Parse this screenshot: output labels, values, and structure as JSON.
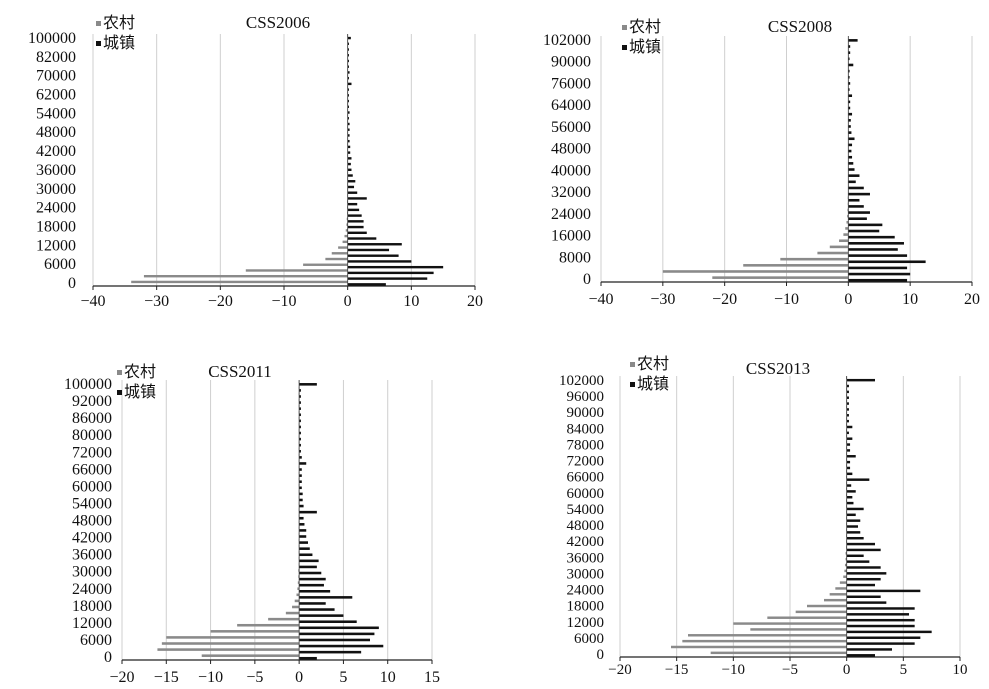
{
  "chart_data": [
    {
      "type": "bar",
      "title": "CSS2006",
      "xlabel": "",
      "ylabel": "",
      "xlim": [
        -40,
        20
      ],
      "x_ticks": [
        "−40",
        "−30",
        "−20",
        "−10",
        "0",
        "10",
        "20"
      ],
      "y_tick_labels": [
        "0",
        "6000",
        "12000",
        "18000",
        "24000",
        "30000",
        "36000",
        "42000",
        "48000",
        "54000",
        "62000",
        "70000",
        "82000",
        "100000"
      ],
      "legend": {
        "position": "top-left"
      },
      "series": [
        {
          "name": "农村",
          "color": "#8a8a8a",
          "values": [
            -34,
            -32,
            -16,
            -7,
            -3.5,
            -2.5,
            -1.5,
            -0.8,
            -0.5,
            -0.3,
            -0.2,
            -0.15,
            -0.1,
            -0.1,
            -0.1,
            -0.05,
            -0.05,
            -0.05,
            -0.05,
            -0.05,
            -0.05,
            -0.05,
            -0.05,
            -0.05,
            -0.05,
            -0.05,
            -0.05,
            -0.05,
            -0.05,
            -0.05,
            -0.05,
            -0.05,
            -0.05,
            -0.05,
            -0.05,
            -0.05,
            -0.05,
            -0.05,
            -0.05,
            -0.05,
            -0.05,
            -0.05,
            -0.05,
            -0.05
          ]
        },
        {
          "name": "城镇",
          "color": "#111111",
          "values": [
            6,
            12.5,
            13.5,
            15,
            10,
            8,
            6.5,
            8.5,
            4.5,
            3,
            2.5,
            2.5,
            2.2,
            1.8,
            1.5,
            3,
            1.5,
            1.0,
            1.2,
            0.8,
            0.6,
            0.5,
            0.6,
            0.4,
            0.4,
            0.3,
            0.3,
            0.3,
            0.3,
            0.2,
            0.3,
            0.2,
            0.2,
            0.2,
            0.2,
            0.6,
            0.2,
            0.3,
            0.2,
            0.2,
            0.2,
            0.2,
            0.2,
            0.5
          ]
        }
      ]
    },
    {
      "type": "bar",
      "title": "CSS2008",
      "xlabel": "",
      "ylabel": "",
      "xlim": [
        -40,
        20
      ],
      "x_ticks": [
        "−40",
        "−30",
        "−20",
        "−10",
        "0",
        "10",
        "20"
      ],
      "y_tick_labels": [
        "0",
        "8000",
        "16000",
        "24000",
        "32000",
        "40000",
        "48000",
        "56000",
        "64000",
        "76000",
        "90000",
        "102000"
      ],
      "legend": {
        "position": "top-left"
      },
      "series": [
        {
          "name": "农村",
          "color": "#8a8a8a",
          "values": [
            -22,
            -30,
            -17,
            -11,
            -5,
            -3,
            -1.5,
            -0.8,
            -0.5,
            -0.3,
            -0.2,
            -0.15,
            -0.1,
            -0.1,
            -0.05,
            -0.05,
            -0.05,
            -0.05,
            -0.05,
            -0.05,
            -0.05,
            -0.05,
            -0.05,
            -0.05,
            -0.05,
            -0.05,
            -0.05,
            -0.05,
            -0.05,
            -0.05,
            -0.05,
            -0.05,
            -0.05,
            -0.05,
            -0.05,
            -0.05,
            -0.05,
            -0.05,
            -0.05,
            -0.05
          ]
        },
        {
          "name": "城镇",
          "color": "#111111",
          "values": [
            9.5,
            10,
            9.5,
            12.5,
            9.5,
            8,
            9,
            7.5,
            5,
            5.5,
            3,
            3.5,
            2.5,
            1.8,
            3.5,
            2.5,
            1.2,
            1.8,
            1.0,
            0.8,
            0.6,
            0.5,
            0.6,
            1.0,
            0.5,
            0.4,
            0.4,
            0.6,
            0.3,
            0.3,
            0.6,
            0.2,
            0.3,
            0.2,
            0.2,
            0.8,
            0.2,
            0.3,
            0.3,
            1.5
          ]
        }
      ]
    },
    {
      "type": "bar",
      "title": "CSS2011",
      "xlabel": "",
      "ylabel": "",
      "xlim": [
        -20,
        15
      ],
      "x_ticks": [
        "−20",
        "−15",
        "−10",
        "−5",
        "0",
        "5",
        "10",
        "15"
      ],
      "y_tick_labels": [
        "0",
        "6000",
        "12000",
        "18000",
        "24000",
        "30000",
        "36000",
        "42000",
        "48000",
        "54000",
        "60000",
        "66000",
        "72000",
        "80000",
        "86000",
        "92000",
        "100000"
      ],
      "legend": {
        "position": "top-left"
      },
      "series": [
        {
          "name": "农村",
          "color": "#8a8a8a",
          "values": [
            -11,
            -16,
            -15.5,
            -15,
            -10,
            -7,
            -3.5,
            -1.5,
            -0.8,
            -0.5,
            -0.3,
            -0.2,
            -0.15,
            -0.1,
            -0.1,
            -0.05,
            -0.05,
            -0.05,
            -0.05,
            -0.05,
            -0.05,
            -0.05,
            -0.05,
            -0.05,
            -0.05,
            -0.05,
            -0.05,
            -0.05,
            -0.05,
            -0.05,
            -0.05,
            -0.05,
            -0.05,
            -0.05,
            -0.05,
            -0.05,
            -0.05,
            -0.05,
            -0.05,
            -0.05,
            -0.05,
            -0.05,
            -0.05,
            -0.05,
            -0.05,
            -0.05
          ]
        },
        {
          "name": "城镇",
          "color": "#111111",
          "values": [
            2,
            7,
            9.5,
            8,
            8.5,
            9,
            6.5,
            5,
            4,
            3,
            6,
            3.5,
            2.8,
            3,
            2.5,
            2.0,
            2.2,
            1.5,
            1.2,
            1.0,
            0.8,
            0.8,
            0.6,
            0.5,
            2.0,
            0.5,
            0.4,
            0.4,
            0.3,
            0.3,
            0.3,
            0.3,
            0.8,
            0.3,
            0.2,
            0.2,
            0.2,
            0.2,
            0.2,
            0.2,
            0.2,
            0.2,
            0.2,
            0.2,
            0.2,
            2.0
          ]
        }
      ]
    },
    {
      "type": "bar",
      "title": "CSS2013",
      "xlabel": "",
      "ylabel": "",
      "xlim": [
        -20,
        10
      ],
      "x_ticks": [
        "−20",
        "−15",
        "−10",
        "−5",
        "0",
        "5",
        "10"
      ],
      "y_tick_labels": [
        "0",
        "6000",
        "12000",
        "18000",
        "24000",
        "30000",
        "36000",
        "42000",
        "48000",
        "54000",
        "60000",
        "66000",
        "72000",
        "78000",
        "84000",
        "90000",
        "96000",
        "102000"
      ],
      "legend": {
        "position": "top-left"
      },
      "series": [
        {
          "name": "农村",
          "color": "#8a8a8a",
          "values": [
            -12,
            -15.5,
            -14.5,
            -14,
            -8.5,
            -10,
            -7,
            -4.5,
            -3.5,
            -2,
            -1.5,
            -1,
            -0.6,
            -0.3,
            -0.2,
            -0.15,
            -0.1,
            -0.1,
            -0.05,
            -0.05,
            -0.05,
            -0.05,
            -0.05,
            -0.05,
            -0.05,
            -0.05,
            -0.05,
            -0.05,
            -0.05,
            -0.05,
            -0.05,
            -0.05,
            -0.05,
            -0.05,
            -0.05,
            -0.05,
            -0.05,
            -0.05,
            -0.05,
            -0.05,
            -0.05,
            -0.05,
            -0.05,
            -0.05,
            -0.05,
            -0.05,
            -0.05,
            -0.05
          ]
        },
        {
          "name": "城镇",
          "color": "#111111",
          "values": [
            2.5,
            4,
            6,
            6.5,
            7.5,
            6,
            6,
            5.5,
            6,
            3.5,
            3,
            6.5,
            2.5,
            3,
            3.5,
            3,
            2.0,
            1.5,
            3,
            2.5,
            1.5,
            1.2,
            1.0,
            1.2,
            0.8,
            1.5,
            0.6,
            0.5,
            0.8,
            0.4,
            2.0,
            0.5,
            0.3,
            0.3,
            0.8,
            0.3,
            0.3,
            0.5,
            0.2,
            0.5,
            0.2,
            0.2,
            0.2,
            0.2,
            0.2,
            0.2,
            0.2,
            2.5
          ]
        }
      ]
    }
  ]
}
